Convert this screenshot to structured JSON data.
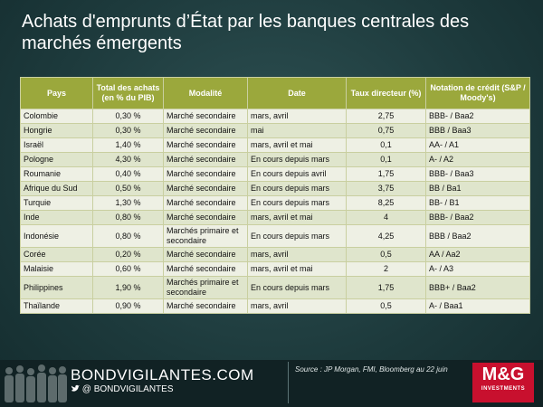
{
  "header": {
    "title": "Achats d'emprunts d’État par les banques centrales des marchés émergents"
  },
  "table": {
    "columns": [
      "Pays",
      "Total des achats (en % du PIB)",
      "Modalité",
      "Date",
      "Taux directeur (%)",
      "Notation de crédit (S&P / Moody's)"
    ],
    "rows": [
      [
        "Colombie",
        "0,30 %",
        "Marché secondaire",
        "mars, avril",
        "2,75",
        "BBB- / Baa2"
      ],
      [
        "Hongrie",
        "0,30 %",
        "Marché secondaire",
        "mai",
        "0,75",
        "BBB / Baa3"
      ],
      [
        "Israël",
        "1,40 %",
        "Marché secondaire",
        "mars, avril et mai",
        "0,1",
        "AA- / A1"
      ],
      [
        "Pologne",
        "4,30 %",
        "Marché secondaire",
        "En cours depuis mars",
        "0,1",
        "A- / A2"
      ],
      [
        "Roumanie",
        "0,40 %",
        "Marché secondaire",
        "En cours depuis avril",
        "1,75",
        "BBB- / Baa3"
      ],
      [
        "Afrique du Sud",
        "0,50 %",
        "Marché secondaire",
        "En cours depuis mars",
        "3,75",
        "BB / Ba1"
      ],
      [
        "Turquie",
        "1,30 %",
        "Marché secondaire",
        "En cours depuis mars",
        "8,25",
        "BB- / B1"
      ],
      [
        "Inde",
        "0,80 %",
        "Marché secondaire",
        "mars, avril et mai",
        "4",
        "BBB- / Baa2"
      ],
      [
        "Indonésie",
        "0,80 %",
        "Marchés primaire et secondaire",
        "En cours depuis mars",
        "4,25",
        "BBB / Baa2"
      ],
      [
        "Corée",
        "0,20 %",
        "Marché secondaire",
        "mars, avril",
        "0,5",
        "AA / Aa2"
      ],
      [
        "Malaisie",
        "0,60 %",
        "Marché secondaire",
        "mars, avril et mai",
        "2",
        "A- / A3"
      ],
      [
        "Philippines",
        "1,90 %",
        "Marchés primaire et secondaire",
        "En cours depuis mars",
        "1,75",
        "BBB+ / Baa2"
      ],
      [
        "Thaïlande",
        "0,90 %",
        "Marché secondaire",
        "mars, avril",
        "0,5",
        "A- / Baa1"
      ]
    ]
  },
  "footer": {
    "website": "BONDVIGILANTES.COM",
    "twitter": "@ BONDVIGILANTES",
    "source": "Source : JP Morgan, FMI, Bloomberg au 22 juin",
    "logo": "M&G",
    "logo_subtitle": "INVESTMENTS"
  }
}
